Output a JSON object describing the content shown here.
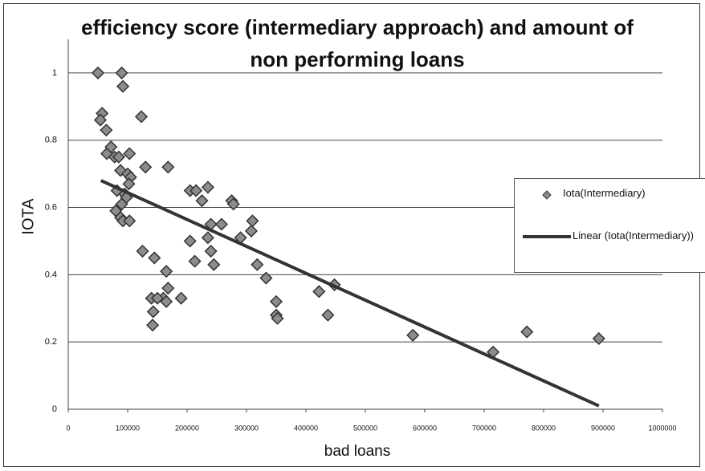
{
  "chart_data": {
    "type": "scatter",
    "title": "efficiency score (intermediary approach) and amount of non performing loans",
    "x_label": "bad loans",
    "y_label": "IOTA",
    "series": [
      {
        "name": "Iota(Intermediary)",
        "color": "#8c8c8c",
        "x": [
          50000,
          90000,
          92000,
          57000,
          54000,
          64000,
          123000,
          65000,
          72000,
          78000,
          85000,
          103000,
          88000,
          130000,
          168000,
          100000,
          105000,
          102000,
          95000,
          82000,
          98000,
          90000,
          80000,
          88000,
          92000,
          103000,
          205000,
          215000,
          235000,
          225000,
          275000,
          278000,
          240000,
          258000,
          310000,
          308000,
          235000,
          205000,
          290000,
          240000,
          213000,
          245000,
          318000,
          333000,
          125000,
          145000,
          165000,
          168000,
          160000,
          140000,
          150000,
          190000,
          143000,
          142000,
          165000,
          350000,
          350000,
          352000,
          422000,
          448000,
          437000,
          580000,
          715000,
          772000,
          893000
        ],
        "values": [
          1.0,
          1.0,
          0.96,
          0.88,
          0.86,
          0.83,
          0.87,
          0.76,
          0.78,
          0.75,
          0.75,
          0.76,
          0.71,
          0.72,
          0.72,
          0.7,
          0.69,
          0.67,
          0.64,
          0.65,
          0.63,
          0.61,
          0.59,
          0.57,
          0.56,
          0.56,
          0.65,
          0.65,
          0.66,
          0.62,
          0.62,
          0.61,
          0.55,
          0.55,
          0.56,
          0.53,
          0.51,
          0.5,
          0.51,
          0.47,
          0.44,
          0.43,
          0.43,
          0.39,
          0.47,
          0.45,
          0.41,
          0.36,
          0.33,
          0.33,
          0.33,
          0.33,
          0.29,
          0.25,
          0.32,
          0.32,
          0.28,
          0.27,
          0.35,
          0.37,
          0.28,
          0.22,
          0.17,
          0.23,
          0.21
        ]
      },
      {
        "name": "Linear (Iota(Intermediary))",
        "color": "#333333",
        "line": true,
        "x": [
          55000,
          893000
        ],
        "values": [
          0.68,
          0.01
        ]
      }
    ],
    "xlim": [
      0,
      1000000
    ],
    "xticks": [
      0,
      100000,
      200000,
      300000,
      400000,
      500000,
      600000,
      700000,
      800000,
      900000,
      1000000
    ],
    "ylim": [
      0,
      1.1
    ],
    "yticks": [
      0,
      0.2,
      0.4,
      0.6,
      0.8,
      1
    ],
    "grid": true,
    "legend": "right"
  }
}
